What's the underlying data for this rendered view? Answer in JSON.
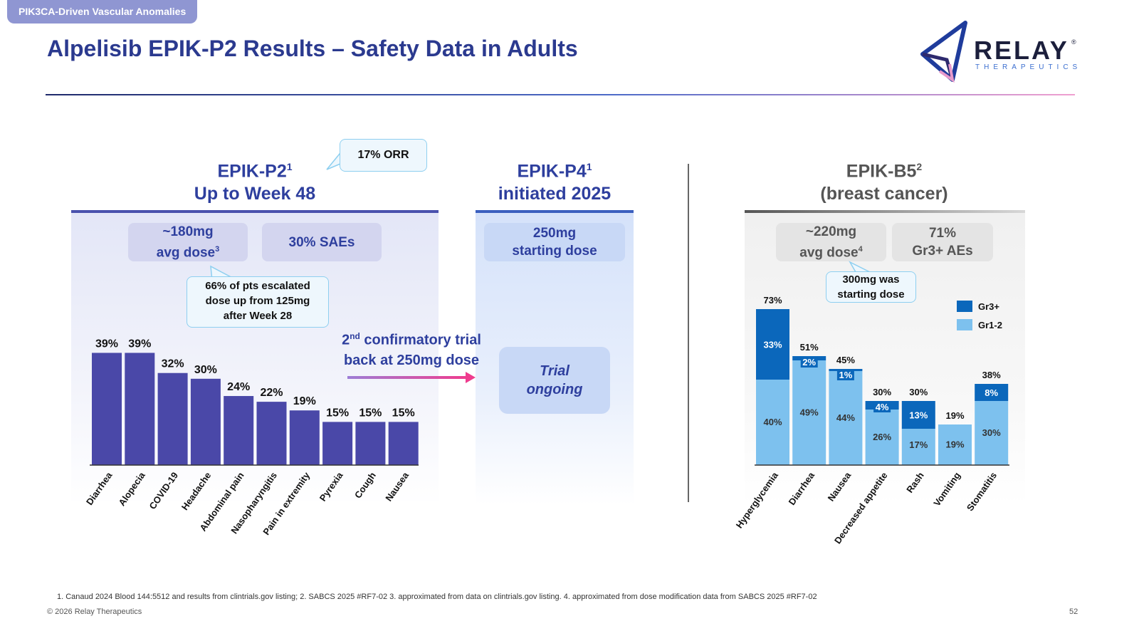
{
  "header": {
    "section_tag": "PIK3CA-Driven Vascular Anomalies",
    "title": "Alpelisib EPIK-P2 Results – Safety Data in Adults",
    "logo_name": "RELAY",
    "logo_sub": "THERAPEUTICS",
    "logo_reg": "®"
  },
  "p2": {
    "title_main": "EPIK-P2",
    "title_sup": "1",
    "subtitle": "Up to Week 48",
    "orr_callout": "17% ORR",
    "dose_line1": "~180mg",
    "dose_line2": "avg dose",
    "dose_sup": "3",
    "saes": "30% SAEs",
    "escalated_callout": [
      "66% of pts escalated",
      "dose up from 125mg",
      "after Week 28"
    ]
  },
  "p4": {
    "title_main": "EPIK-P4",
    "title_sup": "1",
    "subtitle": "initiated 2025",
    "dose_line1": "250mg",
    "dose_line2": "starting dose",
    "ongoing_line1": "Trial",
    "ongoing_line2": "ongoing"
  },
  "arrow_text": {
    "num": "2",
    "sup": "nd",
    "rest_line1": " confirmatory trial",
    "line2": "back at 250mg dose"
  },
  "b5": {
    "title_main": "EPIK-B5",
    "title_sup": "2",
    "subtitle": "(breast cancer)",
    "dose_line1": "~220mg",
    "dose_line2": "avg dose",
    "dose_sup": "4",
    "ae_line1": "71%",
    "ae_line2": "Gr3+ AEs",
    "start_callout": [
      "300mg was",
      "starting dose"
    ]
  },
  "chart_data": [
    {
      "type": "bar",
      "categories": [
        "Diarrhea",
        "Alopecia",
        "COVID-19",
        "Headache",
        "Abdominal pain",
        "Nasopharyngitis",
        "Pain in extremity",
        "Pyrexia",
        "Cough",
        "Nausea"
      ],
      "values": [
        39,
        39,
        32,
        30,
        24,
        22,
        19,
        15,
        15,
        15
      ],
      "value_labels": [
        "39%",
        "39%",
        "32%",
        "30%",
        "24%",
        "22%",
        "19%",
        "15%",
        "15%",
        "15%"
      ],
      "color": "#4a48a8"
    },
    {
      "type": "bar",
      "stacked": true,
      "categories": [
        "Hyperglycemia",
        "Diarrhea",
        "Nausea",
        "Decreased appetite",
        "Rash",
        "Vomiting",
        "Stomatitis"
      ],
      "series": [
        {
          "name": "Gr1-2",
          "values": [
            40,
            49,
            44,
            26,
            17,
            19,
            30
          ],
          "labels": [
            "40%",
            "49%",
            "44%",
            "26%",
            "17%",
            "19%",
            "30%"
          ],
          "color": "#7dc1ee"
        },
        {
          "name": "Gr3+",
          "values": [
            33,
            2,
            1,
            4,
            13,
            0,
            8
          ],
          "labels": [
            "33%",
            "2%",
            "1%",
            "4%",
            "13%",
            "",
            "8%"
          ],
          "color": "#0b67bb"
        }
      ],
      "total_labels": [
        "73%",
        "51%",
        "45%",
        "30%",
        "30%",
        "19%",
        "38%"
      ],
      "legend_position": "right"
    }
  ],
  "footer": {
    "footnote": "1. Canaud 2024 Blood 144:5512 and results from clintrials.gov listing; 2. SABCS 2025 #RF7-02 3. approximated from data on clintrials.gov listing. 4. approximated from dose modification data from SABCS 2025 #RF7-02",
    "copyright": "© 2026 Relay Therapeutics",
    "page": "52"
  }
}
